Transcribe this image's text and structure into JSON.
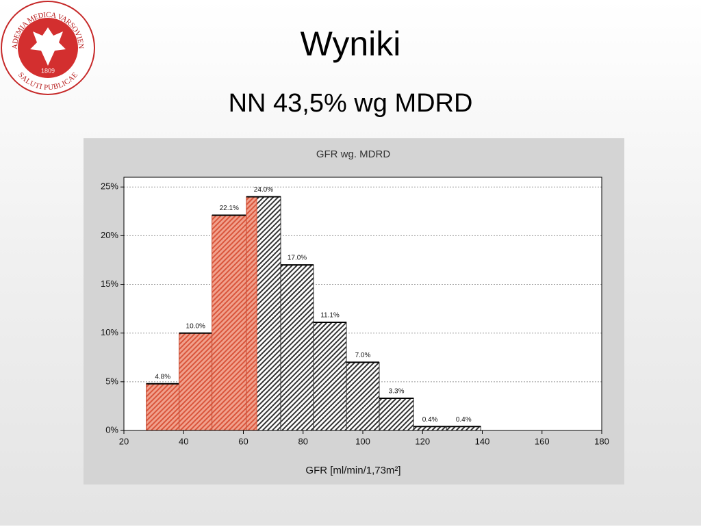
{
  "slide": {
    "title": "Wyniki",
    "subtitle": "NN 43,5% wg MDRD",
    "logo": {
      "ring_top": "ACADEMIA MEDICA VARSOVIENSIS",
      "ring_bottom": "SALUTI PUBLICAE",
      "year": "1809"
    }
  },
  "chart_data": {
    "type": "histogram",
    "title": "GFR wg. MDRD",
    "x_label": "GFR [ml/min/1,73m²]",
    "bins": [
      27.5,
      38.5,
      49.5,
      61,
      72.5,
      83.5,
      94.5,
      105.5,
      117,
      128,
      139.5
    ],
    "values": [
      4.8,
      10.0,
      22.1,
      24.0,
      17.0,
      11.1,
      7.0,
      3.3,
      0.4,
      0.4
    ],
    "value_labels": [
      "4.8%",
      "10.0%",
      "22.1%",
      "24.0%",
      "17.0%",
      "11.1%",
      "7.0%",
      "3.3%",
      "0.4%",
      "0.4%"
    ],
    "color": "#333333",
    "highlight": {
      "color": "#d9553b",
      "below": 64.5
    },
    "xlim": [
      20,
      180
    ],
    "xticks": [
      20,
      40,
      60,
      80,
      100,
      120,
      140,
      160,
      180
    ],
    "ylim": [
      0,
      26
    ],
    "yticks": [
      {
        "value": 0,
        "label": "0%"
      },
      {
        "value": 5,
        "label": "5%"
      },
      {
        "value": 10,
        "label": "10%"
      },
      {
        "value": 15,
        "label": "15%"
      },
      {
        "value": 20,
        "label": "20%"
      },
      {
        "value": 25,
        "label": "25%"
      }
    ],
    "grid": true
  }
}
